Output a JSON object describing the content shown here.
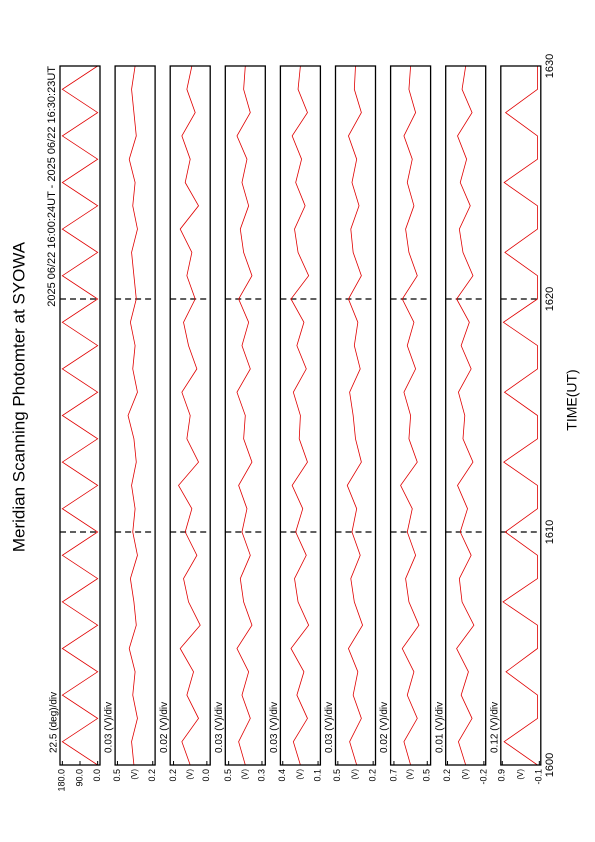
{
  "chart_data": {
    "type": "line",
    "title": "Meridian Scanning Photomter at SYOWA",
    "subtitle": "2025 06/22 16:00:24UT - 2025 06/22 16:30:23UT",
    "xlabel": "TIME(UT)",
    "xlim": [
      1600,
      1630
    ],
    "xticks": [
      1600,
      1610,
      1620,
      1630
    ],
    "grid": true,
    "color": "#e00000",
    "x": [
      1600,
      1601,
      1602,
      1603,
      1604,
      1605,
      1606,
      1607,
      1608,
      1609,
      1610,
      1611,
      1612,
      1613,
      1614,
      1615,
      1616,
      1617,
      1618,
      1619,
      1620,
      1621,
      1622,
      1623,
      1624,
      1625,
      1626,
      1627,
      1628,
      1629,
      1630
    ],
    "panels": [
      {
        "name": "22.5 (deg)/div",
        "ylim": [
          -12,
          192
        ],
        "yticks": [
          {
            "value": 180,
            "label": "180.0"
          },
          {
            "value": 90,
            "label": "90.0"
          },
          {
            "value": 0,
            "label": "0.0"
          }
        ],
        "values": [
          0,
          180,
          0,
          180,
          0,
          180,
          0,
          180,
          0,
          180,
          0,
          180,
          0,
          180,
          0,
          180,
          0,
          180,
          0,
          180,
          0,
          180,
          0,
          180,
          0,
          180,
          0,
          180,
          0,
          180,
          0
        ]
      },
      {
        "name": "0.03 (V)/div",
        "unit": "(V)",
        "ylim": [
          0.18,
          0.52
        ],
        "yticks": [
          0.5,
          0.2
        ],
        "values": [
          0.36,
          0.38,
          0.33,
          0.37,
          0.35,
          0.4,
          0.34,
          0.36,
          0.39,
          0.33,
          0.37,
          0.35,
          0.38,
          0.34,
          0.36,
          0.41,
          0.33,
          0.37,
          0.35,
          0.39,
          0.34,
          0.36,
          0.38,
          0.33,
          0.37,
          0.35,
          0.4,
          0.34,
          0.36,
          0.38,
          0.35
        ]
      },
      {
        "name": "0.02 (V)/div",
        "unit": "(V)",
        "ylim": [
          -0.02,
          0.22
        ],
        "yticks": [
          0.2,
          {
            "value": 0,
            "label": "0.0"
          }
        ],
        "values": [
          0.1,
          0.15,
          0.05,
          0.12,
          0.08,
          0.16,
          0.04,
          0.11,
          0.14,
          0.06,
          0.13,
          0.09,
          0.17,
          0.05,
          0.12,
          0.1,
          0.15,
          0.06,
          0.11,
          0.14,
          0.07,
          0.12,
          0.09,
          0.16,
          0.05,
          0.13,
          0.1,
          0.15,
          0.07,
          0.12,
          0.09
        ]
      },
      {
        "name": "0.03 (V)/div",
        "unit": "(V)",
        "ylim": [
          0.28,
          0.52
        ],
        "yticks": [
          0.5,
          0.3
        ],
        "values": [
          0.4,
          0.44,
          0.37,
          0.42,
          0.38,
          0.45,
          0.36,
          0.41,
          0.43,
          0.37,
          0.42,
          0.39,
          0.44,
          0.36,
          0.41,
          0.4,
          0.45,
          0.37,
          0.42,
          0.38,
          0.44,
          0.36,
          0.41,
          0.43,
          0.38,
          0.42,
          0.39,
          0.45,
          0.37,
          0.41,
          0.4
        ]
      },
      {
        "name": "0.03 (V)/div",
        "unit": "(V)",
        "ylim": [
          0.08,
          0.42
        ],
        "yticks": [
          0.4,
          0.1
        ],
        "values": [
          0.25,
          0.31,
          0.19,
          0.28,
          0.22,
          0.33,
          0.18,
          0.27,
          0.3,
          0.2,
          0.29,
          0.23,
          0.32,
          0.19,
          0.26,
          0.25,
          0.31,
          0.2,
          0.28,
          0.22,
          0.33,
          0.18,
          0.27,
          0.3,
          0.21,
          0.29,
          0.24,
          0.32,
          0.19,
          0.27,
          0.25
        ]
      },
      {
        "name": "0.03 (V)/div",
        "unit": "(V)",
        "ylim": [
          0.18,
          0.52
        ],
        "yticks": [
          0.5,
          0.2
        ],
        "values": [
          0.34,
          0.4,
          0.3,
          0.37,
          0.33,
          0.41,
          0.29,
          0.36,
          0.39,
          0.31,
          0.38,
          0.34,
          0.42,
          0.3,
          0.35,
          0.37,
          0.4,
          0.31,
          0.36,
          0.33,
          0.41,
          0.3,
          0.37,
          0.39,
          0.32,
          0.38,
          0.34,
          0.41,
          0.3,
          0.36,
          0.35
        ]
      },
      {
        "name": "0.02 (V)/div",
        "unit": "(V)",
        "ylim": [
          0.48,
          0.72
        ],
        "yticks": [
          0.7,
          0.5
        ],
        "values": [
          0.6,
          0.64,
          0.56,
          0.62,
          0.58,
          0.65,
          0.55,
          0.61,
          0.63,
          0.57,
          0.62,
          0.59,
          0.66,
          0.56,
          0.61,
          0.6,
          0.64,
          0.57,
          0.62,
          0.58,
          0.65,
          0.56,
          0.61,
          0.63,
          0.58,
          0.62,
          0.59,
          0.64,
          0.57,
          0.61,
          0.6
        ]
      },
      {
        "name": "0.01 (V)/div",
        "unit": "(V)",
        "ylim": [
          -0.22,
          0.22
        ],
        "yticks": [
          0.2,
          -0.2
        ],
        "values": [
          0.0,
          0.08,
          -0.07,
          0.05,
          -0.03,
          0.1,
          -0.09,
          0.04,
          0.07,
          -0.06,
          0.06,
          -0.02,
          0.09,
          -0.08,
          0.03,
          0.01,
          0.08,
          -0.06,
          0.05,
          -0.04,
          0.1,
          -0.08,
          0.03,
          0.07,
          -0.05,
          0.06,
          -0.01,
          0.09,
          -0.07,
          0.04,
          0.0
        ]
      },
      {
        "name": "0.12 (V)/div",
        "unit": "(V)",
        "ylim": [
          -0.14,
          0.94
        ],
        "yticks": [
          0.9,
          -0.1
        ],
        "values": [
          -0.05,
          0.85,
          -0.05,
          -0.05,
          0.8,
          -0.05,
          -0.05,
          0.88,
          -0.05,
          -0.05,
          0.82,
          -0.05,
          -0.05,
          0.86,
          -0.05,
          -0.05,
          0.84,
          -0.05,
          -0.05,
          0.87,
          -0.05,
          -0.05,
          0.83,
          -0.05,
          -0.05,
          0.85,
          -0.05,
          -0.05,
          0.81,
          -0.05,
          -0.05
        ]
      }
    ]
  }
}
